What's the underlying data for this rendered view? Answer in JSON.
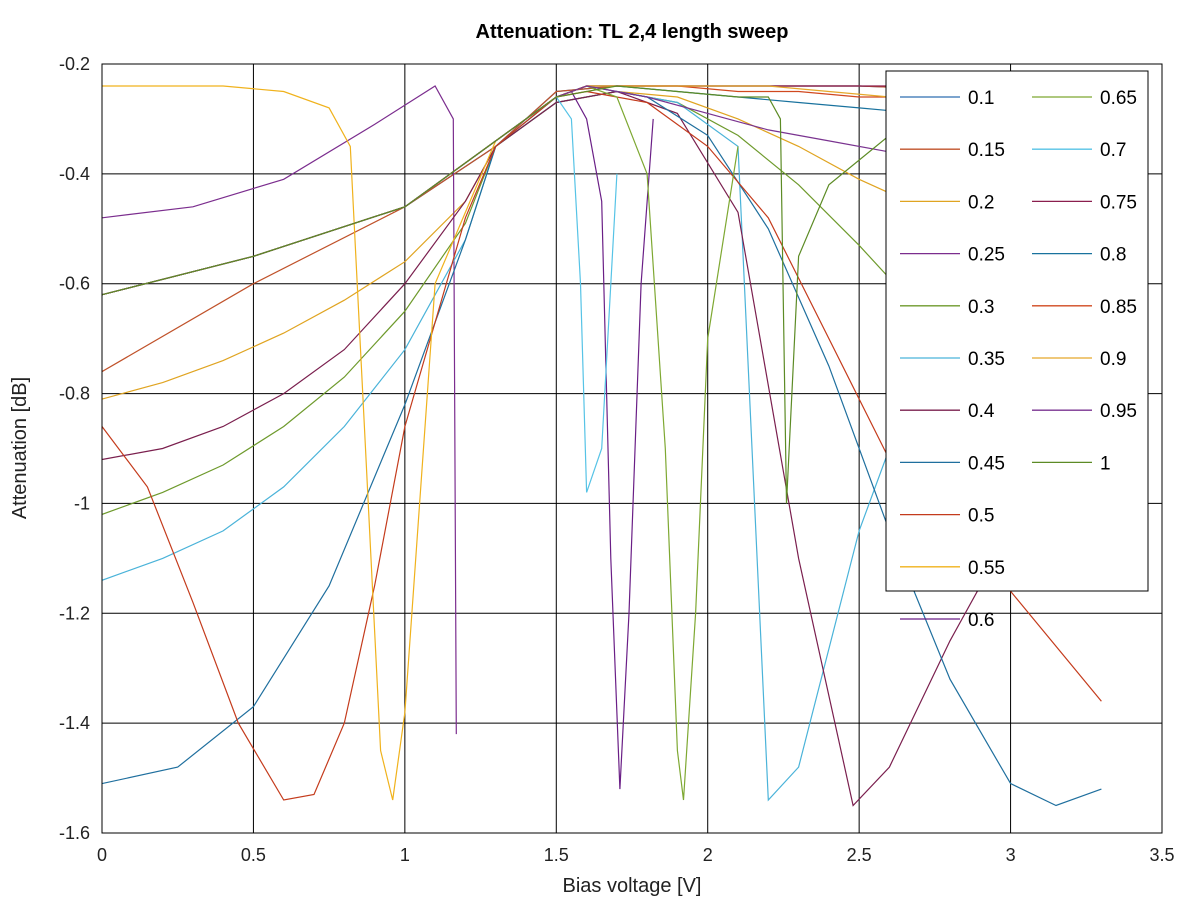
{
  "chart_data": {
    "type": "line",
    "title": "Attenuation: TL 2,4 length sweep",
    "xlabel": "Bias voltage [V]",
    "ylabel": "Attenuation [dB]",
    "xlim": [
      0,
      3.5
    ],
    "ylim": [
      -1.6,
      -0.2
    ],
    "xticks": [
      0,
      0.5,
      1,
      1.5,
      2,
      2.5,
      3,
      3.5
    ],
    "xtick_labels": [
      "0",
      "0.5",
      "1",
      "1.5",
      "2",
      "2.5",
      "3",
      "3.5"
    ],
    "yticks": [
      -1.6,
      -1.4,
      -1.2,
      -1,
      -0.8,
      -0.6,
      -0.4,
      -0.2
    ],
    "ytick_labels": [
      "-1.6",
      "-1.4",
      "-1.2",
      "-1",
      "-0.8",
      "-0.6",
      "-0.4",
      "-0.2"
    ],
    "grid": true,
    "legend_position": "top-right",
    "legend_columns": 2,
    "series": [
      {
        "name": "0.1",
        "color": "#2e6db0",
        "x": [
          0,
          0.5,
          1.0,
          1.3,
          1.5,
          1.7,
          2.0,
          2.5,
          3.0,
          3.3
        ],
        "y": [
          -0.62,
          -0.55,
          -0.46,
          -0.35,
          -0.25,
          -0.24,
          -0.24,
          -0.24,
          -0.25,
          -0.26
        ]
      },
      {
        "name": "0.15",
        "color": "#c0522a",
        "x": [
          0,
          0.5,
          1.0,
          1.3,
          1.5,
          1.7,
          2.0,
          2.5,
          3.0,
          3.3
        ],
        "y": [
          -0.76,
          -0.6,
          -0.46,
          -0.35,
          -0.25,
          -0.24,
          -0.24,
          -0.24,
          -0.25,
          -0.26
        ]
      },
      {
        "name": "0.2",
        "color": "#e0a421",
        "x": [
          0,
          0.2,
          0.4,
          0.6,
          0.8,
          1.0,
          1.2,
          1.3,
          1.5,
          1.7,
          1.9,
          2.1,
          2.3,
          2.5,
          2.7,
          2.9,
          3.1,
          3.3
        ],
        "y": [
          -0.81,
          -0.78,
          -0.74,
          -0.69,
          -0.63,
          -0.56,
          -0.45,
          -0.35,
          -0.27,
          -0.25,
          -0.26,
          -0.3,
          -0.35,
          -0.41,
          -0.46,
          -0.52,
          -0.58,
          -0.63
        ]
      },
      {
        "name": "0.25",
        "color": "#7b2d8e",
        "x": [
          0,
          0.3,
          0.6,
          0.9,
          1.1,
          1.16,
          1.17
        ],
        "y": [
          -0.48,
          -0.46,
          -0.41,
          -0.31,
          -0.24,
          -0.3,
          -1.42
        ]
      },
      {
        "name": "0.3",
        "color": "#6e9a2c",
        "x": [
          0,
          0.2,
          0.4,
          0.6,
          0.8,
          1.0,
          1.2,
          1.3,
          1.5,
          1.7,
          1.9,
          2.1,
          2.3,
          2.5,
          2.7,
          2.9,
          3.1,
          3.3
        ],
        "y": [
          -1.02,
          -0.98,
          -0.93,
          -0.86,
          -0.77,
          -0.65,
          -0.49,
          -0.35,
          -0.27,
          -0.25,
          -0.27,
          -0.33,
          -0.42,
          -0.53,
          -0.65,
          -0.77,
          -0.87,
          -0.95
        ]
      },
      {
        "name": "0.35",
        "color": "#4ab3d9",
        "x": [
          0,
          0.2,
          0.4,
          0.6,
          0.8,
          1.0,
          1.2,
          1.3,
          1.5,
          1.7,
          1.9,
          2.1,
          2.2,
          2.3,
          2.5,
          2.7,
          2.9,
          3.1,
          3.3
        ],
        "y": [
          -1.14,
          -1.1,
          -1.05,
          -0.97,
          -0.86,
          -0.72,
          -0.52,
          -0.35,
          -0.27,
          -0.25,
          -0.27,
          -0.35,
          -1.54,
          -1.48,
          -1.05,
          -0.75,
          -0.58,
          -0.47,
          -0.4
        ]
      },
      {
        "name": "0.4",
        "color": "#7a1f4e",
        "x": [
          0,
          0.2,
          0.4,
          0.6,
          0.8,
          1.0,
          1.2,
          1.3,
          1.5,
          1.7,
          1.9,
          2.1,
          2.3,
          2.48,
          2.6,
          2.8,
          3.0,
          3.2,
          3.3
        ],
        "y": [
          -0.92,
          -0.9,
          -0.86,
          -0.8,
          -0.72,
          -0.6,
          -0.45,
          -0.35,
          -0.27,
          -0.25,
          -0.29,
          -0.47,
          -1.1,
          -1.55,
          -1.48,
          -1.25,
          -1.05,
          -0.9,
          -0.85
        ]
      },
      {
        "name": "0.45",
        "color": "#1f6f9e",
        "x": [
          0,
          0.25,
          0.5,
          0.75,
          1.0,
          1.2,
          1.3,
          1.5,
          1.6,
          1.8,
          2.0,
          2.2,
          2.4,
          2.6,
          2.8,
          3.0,
          3.15,
          3.3
        ],
        "y": [
          -1.51,
          -1.48,
          -1.37,
          -1.15,
          -0.82,
          -0.52,
          -0.35,
          -0.26,
          -0.24,
          -0.26,
          -0.33,
          -0.5,
          -0.75,
          -1.05,
          -1.32,
          -1.51,
          -1.55,
          -1.52
        ]
      },
      {
        "name": "0.5",
        "color": "#c43b1c",
        "x": [
          0,
          0.15,
          0.3,
          0.45,
          0.6,
          0.7,
          0.8,
          0.9,
          1.0,
          1.2,
          1.3,
          1.5,
          1.6,
          1.8,
          2.0,
          2.2,
          2.4,
          2.6,
          2.8,
          3.0,
          3.3
        ],
        "y": [
          -0.86,
          -0.97,
          -1.18,
          -1.4,
          -1.54,
          -1.53,
          -1.4,
          -1.15,
          -0.86,
          -0.48,
          -0.35,
          -0.26,
          -0.25,
          -0.27,
          -0.35,
          -0.48,
          -0.7,
          -0.92,
          -1.08,
          -1.16,
          -1.36
        ]
      },
      {
        "name": "0.55",
        "color": "#f0b21c",
        "x": [
          0,
          0.4,
          0.6,
          0.75,
          0.82,
          0.87,
          0.92,
          0.96,
          1.0,
          1.1,
          1.3
        ],
        "y": [
          -0.24,
          -0.24,
          -0.25,
          -0.28,
          -0.35,
          -0.9,
          -1.45,
          -1.54,
          -1.38,
          -0.6,
          -0.34
        ]
      },
      {
        "name": "0.6",
        "color": "#6a1f86",
        "x": [
          0,
          0.5,
          1.0,
          1.5,
          1.55,
          1.6,
          1.65,
          1.68,
          1.71,
          1.74,
          1.78,
          1.82
        ],
        "y": [
          -0.62,
          -0.55,
          -0.46,
          -0.26,
          -0.25,
          -0.3,
          -0.45,
          -1.1,
          -1.52,
          -1.2,
          -0.6,
          -0.3
        ]
      },
      {
        "name": "0.65",
        "color": "#7ea832",
        "x": [
          0,
          0.5,
          1.0,
          1.5,
          1.6,
          1.7,
          1.8,
          1.86,
          1.9,
          1.92,
          1.96,
          2.0,
          2.1
        ],
        "y": [
          -0.62,
          -0.55,
          -0.46,
          -0.26,
          -0.24,
          -0.26,
          -0.4,
          -0.9,
          -1.45,
          -1.54,
          -1.2,
          -0.7,
          -0.35
        ]
      },
      {
        "name": "0.7",
        "color": "#56c3e6",
        "x": [
          0,
          0.5,
          1.0,
          1.5,
          1.55,
          1.58,
          1.6,
          1.65,
          1.7
        ],
        "y": [
          -0.62,
          -0.55,
          -0.46,
          -0.26,
          -0.3,
          -0.6,
          -0.98,
          -0.9,
          -0.4
        ]
      },
      {
        "name": "0.75",
        "color": "#8a1e4e",
        "x": [
          0,
          0.5,
          1.0,
          1.5,
          1.6,
          1.7,
          1.9,
          2.1,
          2.3,
          2.5,
          2.7,
          2.9,
          3.1,
          3.3
        ],
        "y": [
          -0.62,
          -0.55,
          -0.46,
          -0.26,
          -0.24,
          -0.24,
          -0.24,
          -0.24,
          -0.24,
          -0.24,
          -0.24,
          -0.25,
          -0.25,
          -0.26
        ]
      },
      {
        "name": "0.8",
        "color": "#19729e",
        "x": [
          0,
          0.5,
          1.0,
          1.5,
          1.6,
          1.7,
          1.9,
          2.1,
          2.3,
          2.5,
          2.7,
          2.9,
          3.1,
          3.3
        ],
        "y": [
          -0.62,
          -0.55,
          -0.46,
          -0.26,
          -0.24,
          -0.24,
          -0.25,
          -0.26,
          -0.27,
          -0.28,
          -0.29,
          -0.3,
          -0.31,
          -0.32
        ]
      },
      {
        "name": "0.85",
        "color": "#d0481f",
        "x": [
          0,
          0.5,
          1.0,
          1.5,
          1.6,
          1.7,
          1.9,
          2.1,
          2.3,
          2.5,
          2.7,
          2.9,
          3.1,
          3.3
        ],
        "y": [
          -0.62,
          -0.55,
          -0.46,
          -0.26,
          -0.24,
          -0.24,
          -0.24,
          -0.25,
          -0.25,
          -0.26,
          -0.26,
          -0.27,
          -0.28,
          -0.28
        ]
      },
      {
        "name": "0.9",
        "color": "#e5a82a",
        "x": [
          0,
          0.5,
          1.0,
          1.5,
          1.6,
          1.8,
          2.0,
          2.2,
          2.4,
          2.6,
          2.8,
          3.0,
          3.2,
          3.3
        ],
        "y": [
          -0.62,
          -0.55,
          -0.46,
          -0.26,
          -0.24,
          -0.24,
          -0.24,
          -0.24,
          -0.25,
          -0.26,
          -0.27,
          -0.28,
          -0.29,
          -0.3
        ]
      },
      {
        "name": "0.95",
        "color": "#7a3390",
        "x": [
          0,
          0.5,
          1.0,
          1.5,
          1.6,
          1.8,
          2.0,
          2.2,
          2.4,
          2.6,
          2.8,
          3.0,
          3.2,
          3.3
        ],
        "y": [
          -0.62,
          -0.55,
          -0.46,
          -0.26,
          -0.24,
          -0.26,
          -0.29,
          -0.32,
          -0.34,
          -0.36,
          -0.39,
          -0.43,
          -0.47,
          -0.49
        ]
      },
      {
        "name": "1",
        "color": "#5c8b25",
        "x": [
          0,
          0.5,
          1.0,
          1.5,
          1.7,
          1.9,
          2.1,
          2.2,
          2.24,
          2.26,
          2.3,
          2.4,
          2.6,
          2.8,
          3.0,
          3.2,
          3.3
        ],
        "y": [
          -0.62,
          -0.55,
          -0.46,
          -0.26,
          -0.24,
          -0.25,
          -0.26,
          -0.26,
          -0.3,
          -1.0,
          -0.55,
          -0.42,
          -0.33,
          -0.28,
          -0.25,
          -0.24,
          -0.24
        ]
      }
    ]
  }
}
